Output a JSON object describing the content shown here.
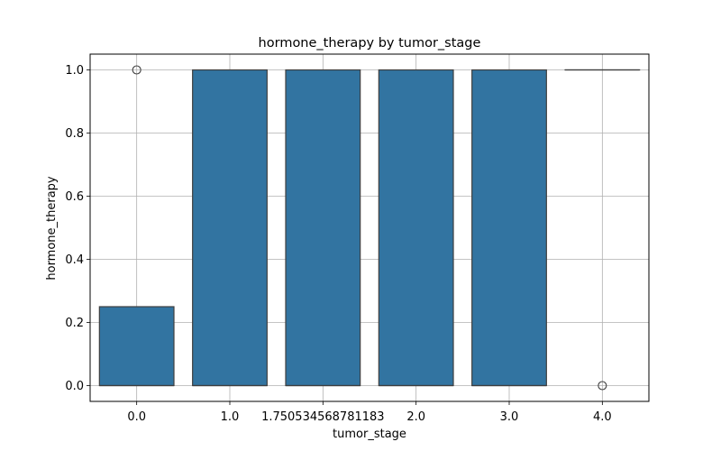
{
  "chart_data": {
    "type": "box",
    "title": "hormone_therapy by tumor_stage",
    "xlabel": "tumor_stage",
    "ylabel": "hormone_therapy",
    "categories": [
      "0.0",
      "1.0",
      "1.750534568781183",
      "2.0",
      "3.0",
      "4.0"
    ],
    "boxes": [
      {
        "category": "0.0",
        "q1": 0.0,
        "median": 0.0,
        "q3": 0.25,
        "whisker_low": 0.0,
        "whisker_high": 0.25,
        "outliers": [
          1.0
        ]
      },
      {
        "category": "1.0",
        "q1": 0.0,
        "median": 0.0,
        "q3": 1.0,
        "whisker_low": 0.0,
        "whisker_high": 1.0,
        "outliers": []
      },
      {
        "category": "1.750534568781183",
        "q1": 0.0,
        "median": 0.0,
        "q3": 1.0,
        "whisker_low": 0.0,
        "whisker_high": 1.0,
        "outliers": []
      },
      {
        "category": "2.0",
        "q1": 0.0,
        "median": 0.0,
        "q3": 1.0,
        "whisker_low": 0.0,
        "whisker_high": 1.0,
        "outliers": []
      },
      {
        "category": "3.0",
        "q1": 0.0,
        "median": 0.0,
        "q3": 1.0,
        "whisker_low": 0.0,
        "whisker_high": 1.0,
        "outliers": []
      },
      {
        "category": "4.0",
        "q1": 1.0,
        "median": 1.0,
        "q3": 1.0,
        "whisker_low": 1.0,
        "whisker_high": 1.0,
        "outliers": [
          0.0
        ]
      }
    ],
    "yticks": [
      "0.0",
      "0.2",
      "0.4",
      "0.6",
      "0.8",
      "1.0"
    ],
    "ylim": [
      -0.05,
      1.05
    ],
    "grid": true,
    "box_color": "#3274a1",
    "edge_color": "#3f3f3f"
  }
}
